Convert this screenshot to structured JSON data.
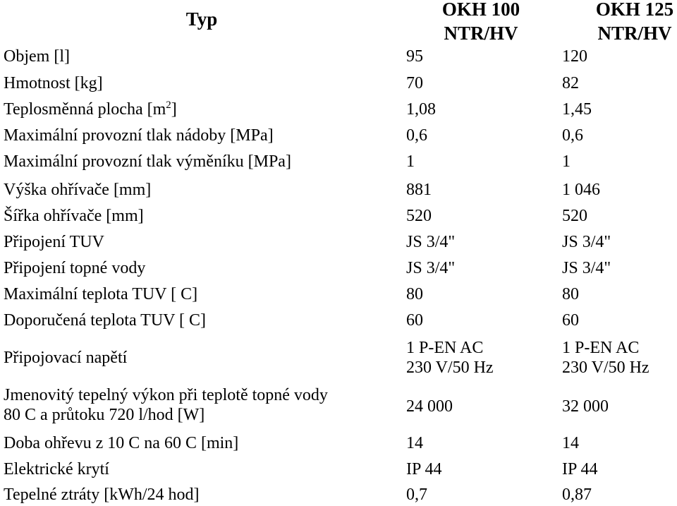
{
  "header": {
    "type_label": "Typ",
    "col1_line1": "OKH 100",
    "col1_line2": "NTR/HV",
    "col2_line1": "OKH 125",
    "col2_line2": "NTR/HV"
  },
  "rows": [
    {
      "label": "Objem [l]",
      "v1": "95",
      "v2": "120"
    },
    {
      "label": "Hmotnost [kg]",
      "v1": "70",
      "v2": "82"
    },
    {
      "label_pre": "Teplosměnná plocha [m",
      "label_sup": "2",
      "label_post": "]",
      "v1": "1,08",
      "v2": "1,45"
    },
    {
      "label": "Maximální provozní tlak nádoby [MPa]",
      "v1": "0,6",
      "v2": "0,6"
    },
    {
      "label": "Maximální provozní tlak výměníku [MPa]",
      "v1": "1",
      "v2": "1"
    },
    {
      "label": "Výška ohřívače [mm]",
      "v1": "881",
      "v2": "1 046"
    },
    {
      "label": "Šířka ohřívače [mm]",
      "v1": "520",
      "v2": "520"
    },
    {
      "label": "Připojení TUV",
      "v1": "JS 3/4\"",
      "v2": "JS 3/4\""
    },
    {
      "label": "Připojení topné vody",
      "v1": "JS 3/4\"",
      "v2": "JS 3/4\""
    },
    {
      "label": "Maximální teplota TUV [ C]",
      "v1": "80",
      "v2": "80"
    },
    {
      "label": "Doporučená teplota TUV [ C]",
      "v1": "60",
      "v2": "60"
    },
    {
      "label": "Připojovací napětí",
      "v1_line1": "1 P-EN AC",
      "v1_line2": "230 V/50 Hz",
      "v2_line1": "1 P-EN AC",
      "v2_line2": "230 V/50 Hz"
    },
    {
      "label_line1": "Jmenovitý tepelný výkon při teplotě topné vody",
      "label_line2": "80  C a průtoku 720 l/hod [W]",
      "v1": "24 000",
      "v2": "32 000"
    },
    {
      "label": "Doba ohřevu z 10  C na 60  C [min]",
      "v1": "14",
      "v2": "14"
    },
    {
      "label": "Elektrické krytí",
      "v1": "IP 44",
      "v2": "IP 44"
    },
    {
      "label": "Tepelné ztráty [kWh/24 hod]",
      "v1": "0,7",
      "v2": "0,87"
    }
  ]
}
